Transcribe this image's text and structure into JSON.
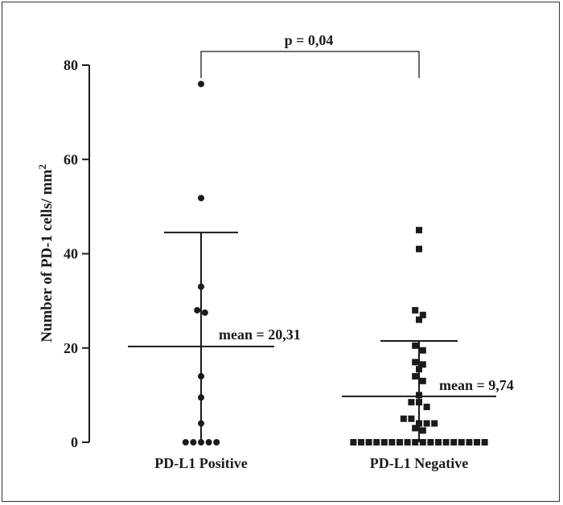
{
  "chart_data": {
    "type": "scatter",
    "ylabel": "Number of PD-1 cells/ mm",
    "ylabel_superscript": "2",
    "ylim": [
      0,
      80
    ],
    "yticks": [
      "0",
      "20",
      "40",
      "60",
      "80"
    ],
    "categories": [
      "PD-L1 Positive",
      "PD-L1 Negative"
    ],
    "series": [
      {
        "name": "PD-L1 Positive",
        "marker": "circle",
        "values": [
          76,
          51.8,
          33,
          28,
          27.5,
          14,
          9.5,
          4,
          0,
          0,
          0,
          0,
          0
        ],
        "mean": 20.31,
        "sd_upper": 44.5,
        "sd_lower": 0,
        "mean_label": "mean = 20,31"
      },
      {
        "name": "PD-L1 Negative",
        "marker": "square",
        "values": [
          45,
          41,
          28,
          27,
          26,
          20.5,
          19.5,
          17,
          16.5,
          15.5,
          14,
          13,
          10,
          8.5,
          8.5,
          7.5,
          5,
          5,
          4,
          4,
          4,
          3,
          2.5,
          0,
          0,
          0,
          0,
          0,
          0,
          0,
          0,
          0,
          0,
          0,
          0,
          0,
          0,
          0,
          0,
          0,
          0
        ],
        "mean": 9.74,
        "sd_upper": 21.5,
        "sd_lower": 0,
        "mean_label": "mean = 9,74"
      }
    ],
    "annotation": "p = 0,04",
    "grid": false,
    "colors": {
      "ink": "#1a1a1a"
    }
  }
}
